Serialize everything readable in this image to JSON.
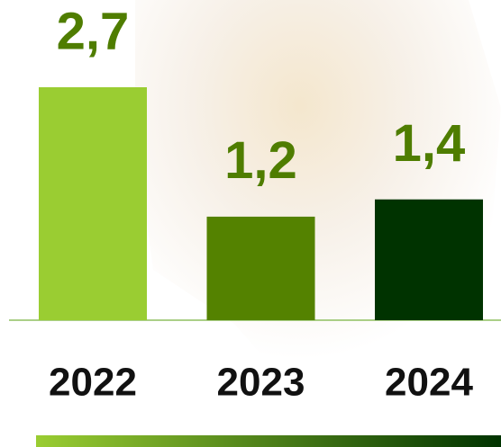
{
  "chart_data": {
    "type": "bar",
    "categories": [
      "2022",
      "2023",
      "2024"
    ],
    "values": [
      2.7,
      1.2,
      1.4
    ],
    "value_labels": [
      "2,7",
      "1,2",
      "1,4"
    ],
    "colors": [
      "#9acd32",
      "#548200",
      "#003300"
    ]
  }
}
